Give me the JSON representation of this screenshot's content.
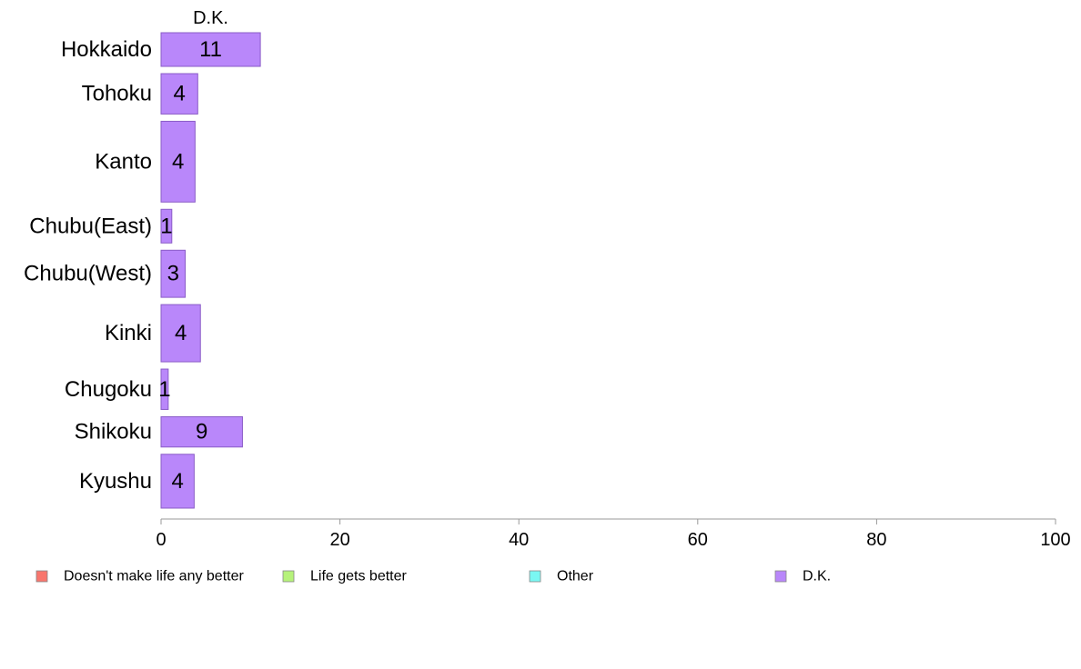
{
  "chart_data": {
    "type": "bar",
    "orientation": "horizontal",
    "stacked": true,
    "title": "",
    "xlabel": "",
    "ylabel": "",
    "xlim": [
      0,
      100
    ],
    "x_ticks": [
      "0",
      "20",
      "40",
      "60",
      "80",
      "100"
    ],
    "grid": false,
    "legend_position": "bottom",
    "categories": [
      "Hokkaido",
      "Tohoku",
      "Kanto",
      "Chubu(East)",
      "Chubu(West)",
      "Kinki",
      "Chugoku",
      "Shikoku",
      "Kyushu"
    ],
    "bar_weights": [
      10,
      12,
      24,
      10,
      14,
      17,
      12,
      9,
      16
    ],
    "series": [
      {
        "name": "Doesn't make life any better",
        "color": "#f8766d",
        "values": [
          0,
          0,
          0,
          0,
          0,
          0,
          0,
          0,
          0
        ]
      },
      {
        "name": "Life gets better",
        "color": "#b6f27a",
        "values": [
          0,
          0,
          0,
          0,
          0,
          0,
          0,
          0,
          0
        ]
      },
      {
        "name": "Other",
        "color": "#7af7f2",
        "values": [
          0,
          0,
          0,
          0,
          0,
          0,
          0,
          0,
          0
        ]
      },
      {
        "name": "D.K.",
        "color": "#b987fa",
        "values": [
          11.1,
          4.1,
          3.8,
          1.2,
          2.7,
          4.4,
          0.8,
          9.1,
          3.7
        ]
      }
    ],
    "data_labels": [
      "11",
      "4",
      "4",
      "1",
      "3",
      "4",
      "1",
      "9",
      "4"
    ],
    "visible_series_header": "D.K."
  }
}
